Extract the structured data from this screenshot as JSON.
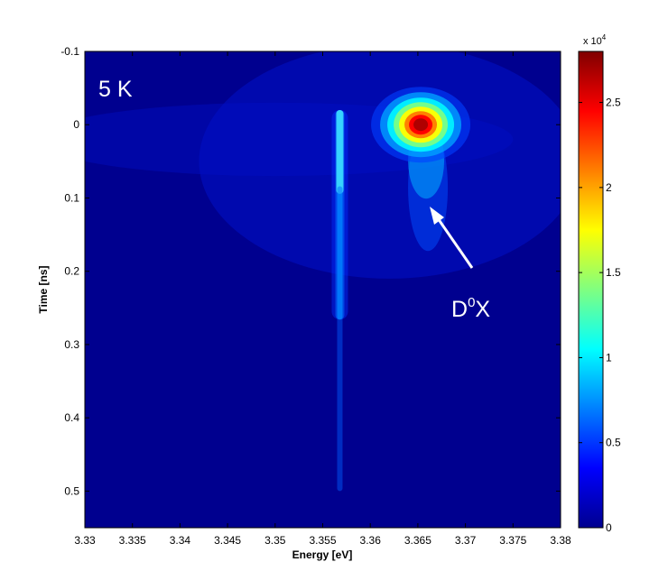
{
  "chart_data": {
    "type": "heatmap",
    "title": "",
    "xlabel": "Energy [eV]",
    "ylabel": "Time [ns]",
    "xlim": [
      3.33,
      3.38
    ],
    "ylim": [
      -0.1,
      0.55
    ],
    "y_axis_inverted": true,
    "x_ticks": [
      "3.33",
      "3.335",
      "3.34",
      "3.345",
      "3.35",
      "3.355",
      "3.36",
      "3.365",
      "3.37",
      "3.375",
      "3.38"
    ],
    "x_tick_values": [
      3.33,
      3.335,
      3.34,
      3.345,
      3.35,
      3.355,
      3.36,
      3.365,
      3.37,
      3.375,
      3.38
    ],
    "y_ticks": [
      "-0.1",
      "0",
      "0.1",
      "0.2",
      "0.3",
      "0.4",
      "0.5"
    ],
    "y_tick_values": [
      -0.1,
      0,
      0.1,
      0.2,
      0.3,
      0.4,
      0.5
    ],
    "colorbar": {
      "colormap": "jet",
      "range": [
        0,
        28000
      ],
      "ticks": [
        "0",
        "0.5",
        "1",
        "1.5",
        "2",
        "2.5"
      ],
      "tick_values": [
        0,
        0.5,
        1,
        1.5,
        2,
        2.5
      ],
      "exponent_label": "x 10",
      "exponent_power": "4"
    },
    "annotations": {
      "temperature": "5 K",
      "peak_label_main": "D",
      "peak_label_sup": "0",
      "peak_label_tail": "X"
    },
    "features": [
      {
        "kind": "blob",
        "energy": 3.3653,
        "time": 0.0,
        "peak": 28000
      },
      {
        "kind": "line",
        "energy": 3.3568,
        "time_start": -0.02,
        "time_end": 0.5,
        "peak": 9000
      }
    ],
    "background_color": "#00008f"
  }
}
